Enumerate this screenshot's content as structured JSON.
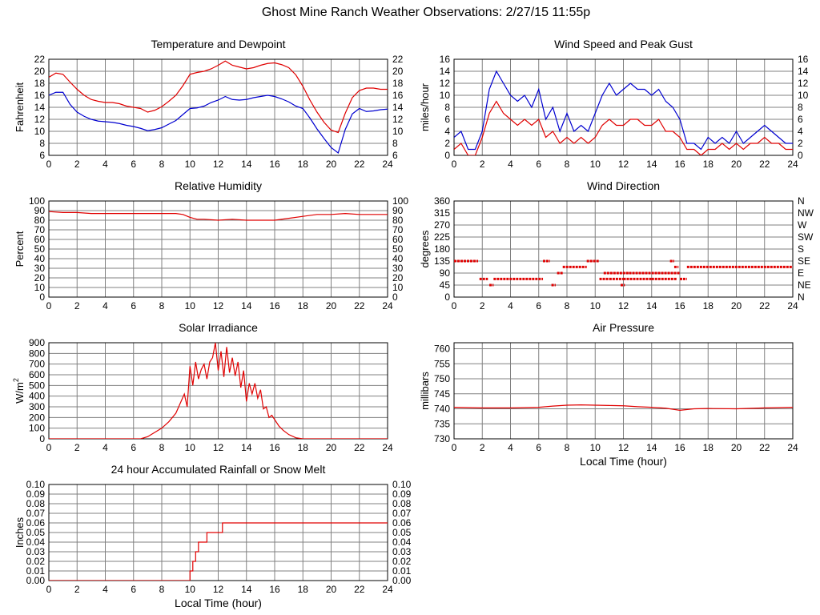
{
  "page_title": "Ghost Mine Ranch Weather Observations: 2/27/15 11:55p",
  "colors": {
    "red": "#e00000",
    "blue": "#0000d0",
    "grid": "#808080"
  },
  "chart_data": [
    {
      "id": "temp",
      "type": "line",
      "title": "Temperature and Dewpoint",
      "xlabel": "",
      "ylabel": "Fahrenheit",
      "xlim": [
        0,
        24
      ],
      "ylim": [
        6,
        22
      ],
      "xticks": [
        0,
        2,
        4,
        6,
        8,
        10,
        12,
        14,
        16,
        18,
        20,
        22,
        24
      ],
      "yticks": [
        6,
        8,
        10,
        12,
        14,
        16,
        18,
        20,
        22
      ],
      "right_ticks": [
        "6",
        "8",
        "10",
        "12",
        "14",
        "16",
        "18",
        "20",
        "22"
      ],
      "series": [
        {
          "color": "#e00000",
          "style": "line",
          "x": [
            0,
            0.5,
            1,
            1.5,
            2,
            2.5,
            3,
            3.5,
            4,
            4.5,
            5,
            5.5,
            6,
            6.5,
            7,
            7.5,
            8,
            8.5,
            9,
            9.5,
            10,
            10.5,
            11,
            11.5,
            12,
            12.5,
            13,
            13.5,
            14,
            14.5,
            15,
            15.5,
            16,
            16.5,
            17,
            17.5,
            18,
            18.5,
            19,
            19.5,
            20,
            20.5,
            21,
            21.5,
            22,
            22.5,
            23,
            23.5,
            24
          ],
          "y": [
            19,
            19.7,
            19.5,
            18.2,
            17,
            16,
            15.3,
            15,
            14.8,
            14.8,
            14.6,
            14.2,
            14,
            13.8,
            13.2,
            13.5,
            14.1,
            15,
            16,
            17.6,
            19.5,
            19.8,
            20,
            20.4,
            21,
            21.7,
            21,
            20.7,
            20.4,
            20.6,
            21,
            21.3,
            21.4,
            21.1,
            20.6,
            19.4,
            17.5,
            15.2,
            13.2,
            11.5,
            10.2,
            9.8,
            13,
            15.6,
            16.8,
            17.2,
            17.2,
            17,
            17
          ]
        },
        {
          "color": "#0000d0",
          "style": "line",
          "x": [
            0,
            0.5,
            1,
            1.5,
            2,
            2.5,
            3,
            3.5,
            4,
            4.5,
            5,
            5.5,
            6,
            6.5,
            7,
            7.5,
            8,
            8.5,
            9,
            9.5,
            10,
            10.5,
            11,
            11.5,
            12,
            12.5,
            13,
            13.5,
            14,
            14.5,
            15,
            15.5,
            16,
            16.5,
            17,
            17.5,
            18,
            18.5,
            19,
            19.5,
            20,
            20.5,
            21,
            21.5,
            22,
            22.5,
            23,
            23.5,
            24
          ],
          "y": [
            16,
            16.5,
            16.5,
            14.5,
            13.2,
            12.5,
            12,
            11.7,
            11.6,
            11.5,
            11.3,
            11,
            10.8,
            10.5,
            10.1,
            10.3,
            10.6,
            11.2,
            11.8,
            12.8,
            13.8,
            13.9,
            14.2,
            14.8,
            15.2,
            15.8,
            15.3,
            15.2,
            15.3,
            15.6,
            15.8,
            16,
            15.8,
            15.4,
            14.9,
            14.2,
            13.8,
            12.2,
            10.4,
            8.8,
            7.3,
            6.4,
            10.3,
            12.9,
            13.8,
            13.3,
            13.4,
            13.6,
            13.7
          ]
        }
      ]
    },
    {
      "id": "wind",
      "type": "line",
      "title": "Wind Speed and Peak Gust",
      "xlabel": "",
      "ylabel": "miles/hour",
      "xlim": [
        0,
        24
      ],
      "ylim": [
        0,
        16
      ],
      "xticks": [
        0,
        2,
        4,
        6,
        8,
        10,
        12,
        14,
        16,
        18,
        20,
        22,
        24
      ],
      "yticks": [
        0,
        2,
        4,
        6,
        8,
        10,
        12,
        14,
        16
      ],
      "right_ticks": [
        "0",
        "2",
        "4",
        "6",
        "8",
        "10",
        "12",
        "14",
        "16"
      ],
      "series": [
        {
          "color": "#0000d0",
          "style": "line",
          "x": [
            0,
            0.5,
            1,
            1.5,
            2,
            2.5,
            3,
            3.5,
            4,
            4.5,
            5,
            5.5,
            6,
            6.5,
            7,
            7.5,
            8,
            8.5,
            9,
            9.5,
            10,
            10.5,
            11,
            11.5,
            12,
            12.5,
            13,
            13.5,
            14,
            14.5,
            15,
            15.5,
            16,
            16.5,
            17,
            17.5,
            18,
            18.5,
            19,
            19.5,
            20,
            20.5,
            21,
            21.5,
            22,
            22.5,
            23,
            23.5,
            24
          ],
          "y": [
            3,
            4,
            1,
            1,
            4,
            11,
            14,
            12,
            10,
            9,
            10,
            8,
            11,
            6,
            8,
            4,
            7,
            4,
            5,
            4,
            7,
            10,
            12,
            10,
            11,
            12,
            11,
            11,
            10,
            11,
            9,
            8,
            6,
            2,
            2,
            1,
            3,
            2,
            3,
            2,
            4,
            2,
            3,
            4,
            5,
            4,
            3,
            2,
            2
          ]
        },
        {
          "color": "#e00000",
          "style": "line",
          "x": [
            0,
            0.5,
            1,
            1.5,
            2,
            2.5,
            3,
            3.5,
            4,
            4.5,
            5,
            5.5,
            6,
            6.5,
            7,
            7.5,
            8,
            8.5,
            9,
            9.5,
            10,
            10.5,
            11,
            11.5,
            12,
            12.5,
            13,
            13.5,
            14,
            14.5,
            15,
            15.5,
            16,
            16.5,
            17,
            17.5,
            18,
            18.5,
            19,
            19.5,
            20,
            20.5,
            21,
            21.5,
            22,
            22.5,
            23,
            23.5,
            24
          ],
          "y": [
            1,
            2,
            0,
            0,
            3,
            7,
            9,
            7,
            6,
            5,
            6,
            5,
            6,
            3,
            4,
            2,
            3,
            2,
            3,
            2,
            3,
            5,
            6,
            5,
            5,
            6,
            6,
            5,
            5,
            6,
            4,
            4,
            3,
            1,
            1,
            0,
            1,
            1,
            2,
            1,
            2,
            1,
            2,
            2,
            3,
            2,
            2,
            1,
            1
          ]
        }
      ]
    },
    {
      "id": "rh",
      "type": "line",
      "title": "Relative Humidity",
      "xlabel": "",
      "ylabel": "Percent",
      "xlim": [
        0,
        24
      ],
      "ylim": [
        0,
        100
      ],
      "xticks": [
        0,
        2,
        4,
        6,
        8,
        10,
        12,
        14,
        16,
        18,
        20,
        22,
        24
      ],
      "yticks": [
        0,
        10,
        20,
        30,
        40,
        50,
        60,
        70,
        80,
        90,
        100
      ],
      "right_ticks": [
        "0",
        "10",
        "20",
        "30",
        "40",
        "50",
        "60",
        "70",
        "80",
        "90",
        "100"
      ],
      "series": [
        {
          "color": "#e00000",
          "style": "line",
          "x": [
            0,
            1,
            2,
            3,
            4,
            5,
            6,
            7,
            8,
            9,
            9.5,
            10,
            10.5,
            11,
            12,
            13,
            14,
            15,
            16,
            17,
            18,
            19,
            20,
            21,
            22,
            23,
            24
          ],
          "y": [
            89,
            88,
            88,
            87,
            87,
            87,
            87,
            87,
            87,
            87,
            86,
            83,
            81,
            81,
            80,
            81,
            80,
            80,
            80,
            82,
            84,
            86,
            86,
            87,
            86,
            86,
            86
          ]
        }
      ]
    },
    {
      "id": "wdir",
      "type": "scatter",
      "title": "Wind Direction",
      "xlabel": "",
      "ylabel": "degrees",
      "xlim": [
        0,
        24
      ],
      "ylim": [
        0,
        360
      ],
      "xticks": [
        0,
        2,
        4,
        6,
        8,
        10,
        12,
        14,
        16,
        18,
        20,
        22,
        24
      ],
      "yticks": [
        0,
        45,
        90,
        135,
        180,
        225,
        270,
        315,
        360
      ],
      "right_ticks": [
        "N",
        "NE",
        "E",
        "SE",
        "S",
        "SW",
        "W",
        "NW",
        "N"
      ],
      "series": [
        {
          "color": "#e00000",
          "style": "segments",
          "segments": [
            [
              0,
              1.7,
              135
            ],
            [
              1.8,
              2.4,
              68
            ],
            [
              2.5,
              2.8,
              45
            ],
            [
              2.8,
              6.3,
              68
            ],
            [
              6.3,
              6.8,
              135
            ],
            [
              6.9,
              7.2,
              45
            ],
            [
              7.3,
              7.7,
              90
            ],
            [
              7.7,
              9.4,
              113
            ],
            [
              9.4,
              10.3,
              135
            ],
            [
              10.3,
              11.0,
              68
            ],
            [
              11.0,
              12.0,
              68
            ],
            [
              10.6,
              12.4,
              90
            ],
            [
              11.8,
              12.1,
              45
            ],
            [
              12.4,
              16.0,
              90
            ],
            [
              12.0,
              14.0,
              68
            ],
            [
              14.0,
              15.8,
              68
            ],
            [
              15.3,
              15.6,
              135
            ],
            [
              15.6,
              15.9,
              113
            ],
            [
              16.0,
              16.5,
              68
            ],
            [
              16.5,
              24,
              113
            ]
          ]
        }
      ]
    },
    {
      "id": "solar",
      "type": "line",
      "title": "Solar Irradiance",
      "xlabel": "",
      "ylabel": "W/m",
      "ylabel_sup": "2",
      "xlim": [
        0,
        24
      ],
      "ylim": [
        0,
        900
      ],
      "xticks": [
        0,
        2,
        4,
        6,
        8,
        10,
        12,
        14,
        16,
        18,
        20,
        22,
        24
      ],
      "yticks": [
        0,
        100,
        200,
        300,
        400,
        500,
        600,
        700,
        800,
        900
      ],
      "right_ticks": [],
      "series": [
        {
          "color": "#e00000",
          "style": "line",
          "x": [
            0,
            6.5,
            7,
            7.5,
            8,
            8.5,
            9,
            9.3,
            9.6,
            9.8,
            10,
            10.2,
            10.4,
            10.6,
            10.8,
            11,
            11.2,
            11.4,
            11.6,
            11.8,
            12,
            12.2,
            12.4,
            12.6,
            12.8,
            13,
            13.2,
            13.4,
            13.6,
            13.8,
            14,
            14.2,
            14.4,
            14.6,
            14.8,
            15,
            15.2,
            15.4,
            15.6,
            15.8,
            16,
            16.3,
            16.6,
            17,
            17.5,
            18,
            24
          ],
          "y": [
            0,
            0,
            20,
            60,
            100,
            160,
            240,
            330,
            420,
            300,
            680,
            500,
            720,
            560,
            650,
            700,
            560,
            720,
            760,
            900,
            640,
            820,
            580,
            860,
            620,
            760,
            590,
            720,
            480,
            640,
            350,
            520,
            420,
            520,
            380,
            460,
            280,
            300,
            200,
            220,
            180,
            120,
            80,
            40,
            10,
            0,
            0
          ]
        }
      ]
    },
    {
      "id": "press",
      "type": "line",
      "title": "Air Pressure",
      "xlabel": "Local Time (hour)",
      "ylabel": "millibars",
      "xlim": [
        0,
        24
      ],
      "ylim": [
        730,
        762
      ],
      "xticks": [
        0,
        2,
        4,
        6,
        8,
        10,
        12,
        14,
        16,
        18,
        20,
        22,
        24
      ],
      "yticks": [
        730,
        735,
        740,
        745,
        750,
        755,
        760
      ],
      "right_ticks": [],
      "series": [
        {
          "color": "#e00000",
          "style": "line",
          "x": [
            0,
            2,
            4,
            6,
            7,
            8,
            9,
            10,
            11,
            12,
            13,
            14,
            15,
            16,
            17,
            18,
            20,
            22,
            24
          ],
          "y": [
            740.5,
            740.3,
            740.3,
            740.5,
            740.9,
            741.2,
            741.3,
            741.2,
            741.1,
            741.0,
            740.7,
            740.5,
            740.2,
            739.5,
            740.0,
            740.1,
            740.0,
            740.3,
            740.5
          ]
        }
      ]
    },
    {
      "id": "rain",
      "type": "line",
      "title": "24 hour Accumulated Rainfall or Snow Melt",
      "xlabel": "Local Time (hour)",
      "ylabel": "Inches",
      "xlim": [
        0,
        24
      ],
      "ylim": [
        0,
        0.1
      ],
      "xticks": [
        0,
        2,
        4,
        6,
        8,
        10,
        12,
        14,
        16,
        18,
        20,
        22,
        24
      ],
      "yticks": [
        0,
        0.01,
        0.02,
        0.03,
        0.04,
        0.05,
        0.06,
        0.07,
        0.08,
        0.09,
        0.1
      ],
      "right_ticks": [
        "0.00",
        "0.01",
        "0.02",
        "0.03",
        "0.04",
        "0.05",
        "0.06",
        "0.07",
        "0.08",
        "0.09",
        "0.10"
      ],
      "ytick_labels": [
        "0.00",
        "0.01",
        "0.02",
        "0.03",
        "0.04",
        "0.05",
        "0.06",
        "0.07",
        "0.08",
        "0.09",
        "0.10"
      ],
      "series": [
        {
          "color": "#e00000",
          "style": "step",
          "x": [
            0,
            9.9,
            10.0,
            10.2,
            10.4,
            10.6,
            10.8,
            11.2,
            11.5,
            12.0,
            12.3,
            12.6,
            24
          ],
          "y": [
            0,
            0,
            0.01,
            0.02,
            0.03,
            0.04,
            0.04,
            0.05,
            0.05,
            0.05,
            0.06,
            0.06,
            0.06
          ]
        }
      ]
    }
  ]
}
